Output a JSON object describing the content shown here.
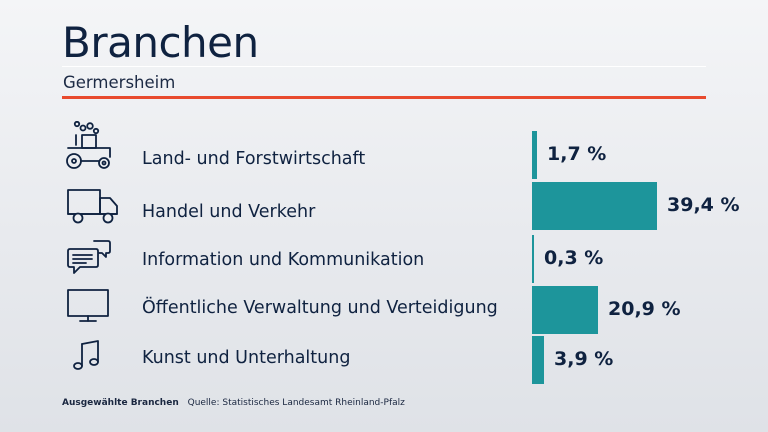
{
  "header": {
    "title": "Branchen",
    "subtitle": "Germersheim"
  },
  "colors": {
    "bar": "#1d959b",
    "accent_rule": "#e84a2e",
    "text": "#0f2240"
  },
  "chart_data": {
    "type": "bar",
    "orientation": "horizontal",
    "title": "Branchen",
    "subtitle": "Germersheim",
    "categories": [
      "Land- und Forstwirtschaft",
      "Handel und Verkehr",
      "Information und Kommunikation",
      "Öffentliche Verwaltung und Verteidigung",
      "Kunst und Unterhaltung"
    ],
    "values": [
      1.7,
      39.4,
      0.3,
      20.9,
      3.9
    ],
    "value_labels": [
      "1,7 %",
      "39,4 %",
      "0,3 %",
      "20,9 %",
      "3,9 %"
    ],
    "unit": "%",
    "icons": [
      "tractor-icon",
      "truck-icon",
      "speech-bubbles-icon",
      "monitor-icon",
      "music-note-icon"
    ],
    "xlim": [
      0,
      39.4
    ],
    "grid": false,
    "legend": "none"
  },
  "footer": {
    "label": "Ausgewählte Branchen",
    "source": "Quelle: Statistisches Landesamt Rheinland-Pfalz"
  }
}
